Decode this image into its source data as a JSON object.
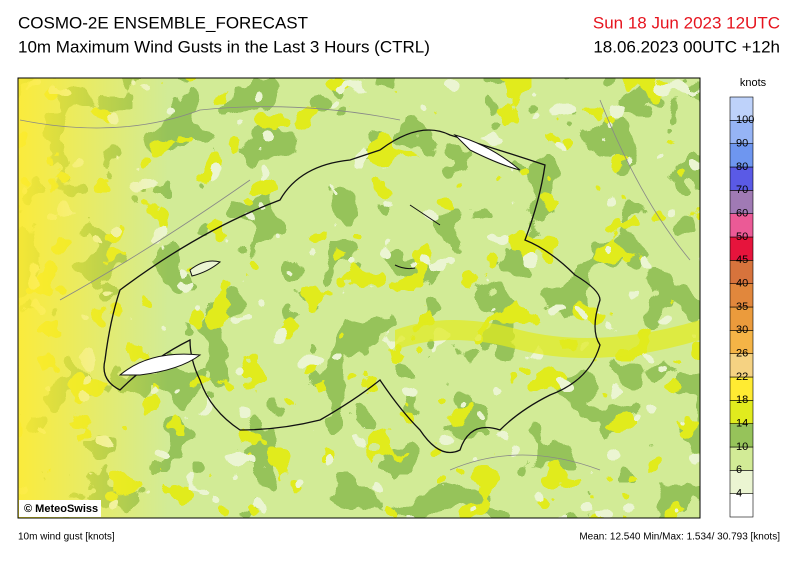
{
  "header": {
    "title": "COSMO-2E ENSEMBLE_FORECAST",
    "subtitle": "10m Maximum Wind Gusts in the Last 3 Hours (CTRL)",
    "valid_time": "Sun 18 Jun 2023 12UTC",
    "run_time": "18.06.2023 00UTC +12h"
  },
  "legend": {
    "unit": "knots",
    "ticks": [
      "4",
      "6",
      "10",
      "14",
      "18",
      "22",
      "26",
      "30",
      "35",
      "40",
      "45",
      "50",
      "60",
      "70",
      "80",
      "90",
      "100"
    ],
    "colors": [
      "#ffffff",
      "#ebf5d2",
      "#d2eb96",
      "#96c35a",
      "#e1eb1e",
      "#ffeb32",
      "#f5d282",
      "#f5b446",
      "#eb9b3c",
      "#e1873c",
      "#d7733c",
      "#e6143c",
      "#eb5a96",
      "#a07ab4",
      "#5a5ae6",
      "#6e96f0",
      "#96b4f5",
      "#bed2fa"
    ]
  },
  "map": {
    "copyright": "© MeteoSwiss"
  },
  "footer": {
    "variable": "10m wind gust [knots]",
    "stats": "Mean:  12.540 Min/Max:  1.534/ 30.793 [knots]"
  }
}
